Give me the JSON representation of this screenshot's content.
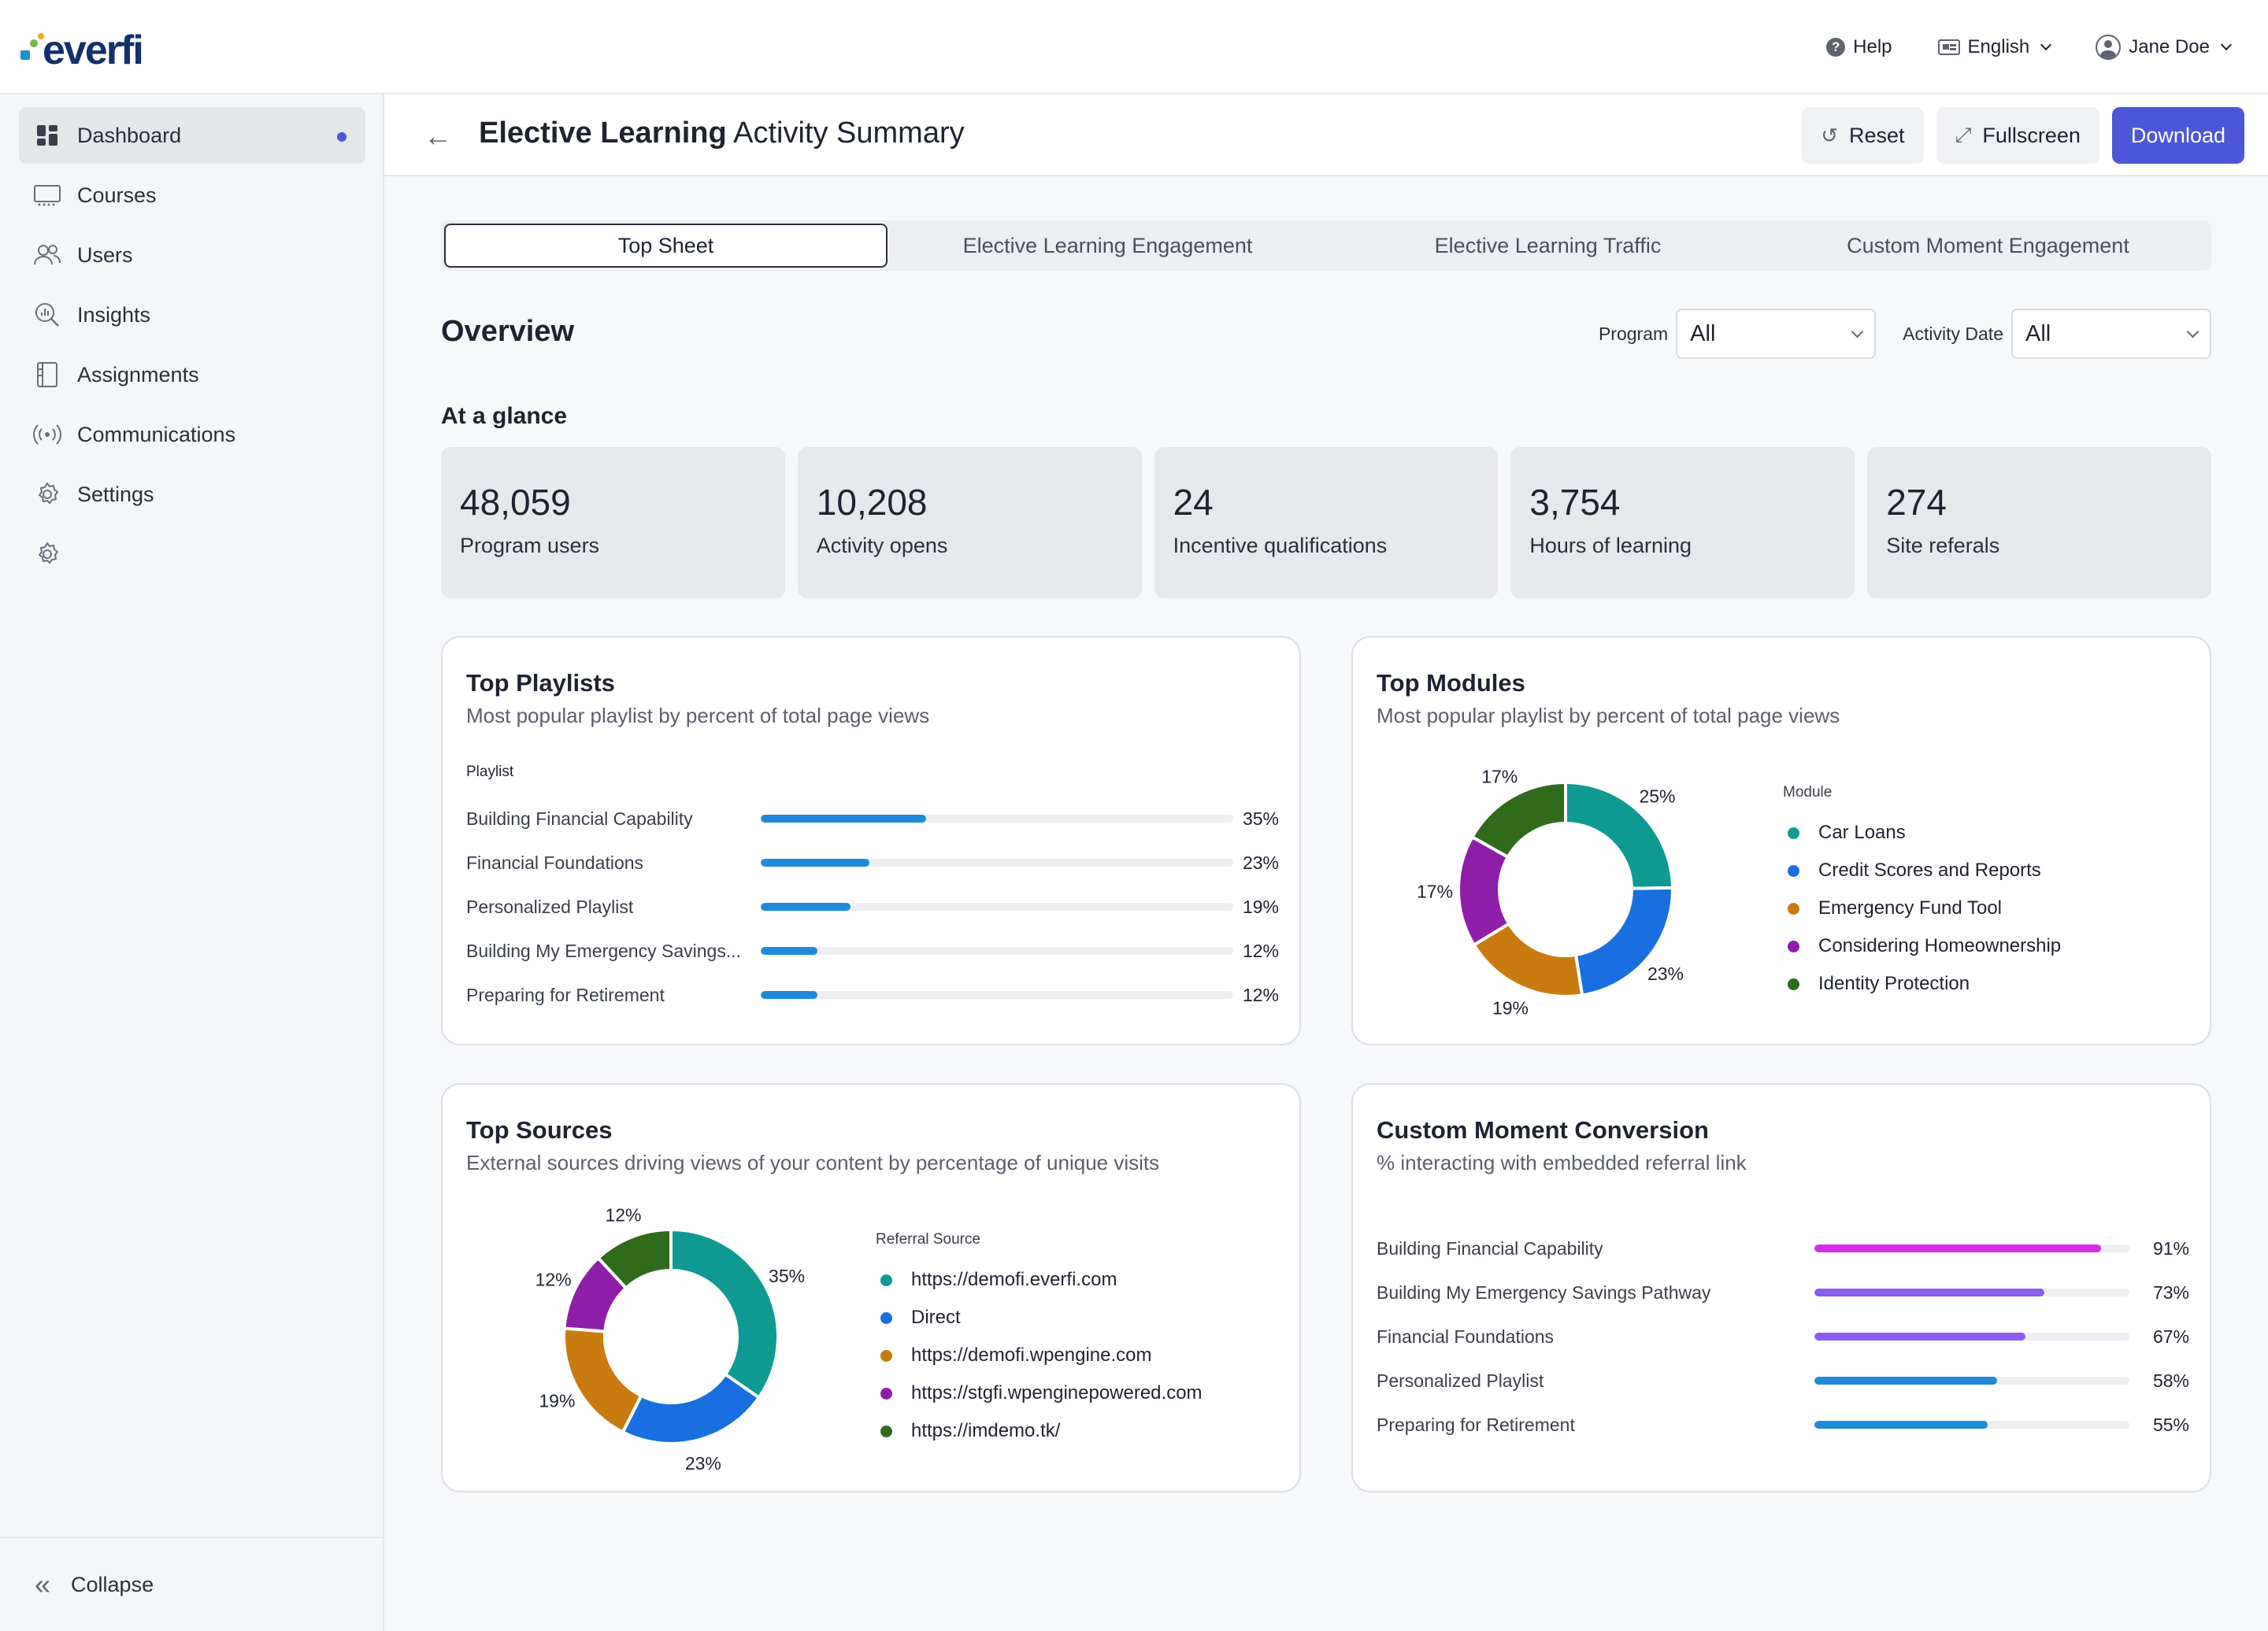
{
  "app": {
    "logo_text": "everfi",
    "help_label": "Help",
    "language_label": "English",
    "user_name": "Jane Doe"
  },
  "sidebar": {
    "items": [
      {
        "label": "Dashboard",
        "icon": "dashboard-icon",
        "active": true
      },
      {
        "label": "Courses",
        "icon": "courses-icon"
      },
      {
        "label": "Users",
        "icon": "users-icon"
      },
      {
        "label": "Insights",
        "icon": "insights-icon"
      },
      {
        "label": "Assignments",
        "icon": "assignments-icon"
      },
      {
        "label": "Communications",
        "icon": "communications-icon"
      },
      {
        "label": "Settings",
        "icon": "gear-icon"
      }
    ],
    "collapse_label": "Collapse",
    "accent": "#4b57d6"
  },
  "header": {
    "title_bold": "Elective Learning",
    "title_rest": " Activity Summary",
    "reset_label": "Reset",
    "fullscreen_label": "Fullscreen",
    "download_label": "Download"
  },
  "tabs": [
    {
      "label": "Top Sheet",
      "active": true
    },
    {
      "label": "Elective Learning Engagement"
    },
    {
      "label": "Elective Learning Traffic"
    },
    {
      "label": "Custom Moment Engagement"
    }
  ],
  "overview": {
    "title": "Overview",
    "program_label": "Program",
    "program_value": "All",
    "date_label": "Activity Date",
    "date_value": "All"
  },
  "glance": {
    "title": "At a glance",
    "stats": [
      {
        "value": "48,059",
        "label": "Program users"
      },
      {
        "value": "10,208",
        "label": "Activity opens"
      },
      {
        "value": "24",
        "label": "Incentive qualifications"
      },
      {
        "value": "3,754",
        "label": "Hours of learning"
      },
      {
        "value": "274",
        "label": "Site referals"
      }
    ]
  },
  "top_playlists": {
    "title": "Top Playlists",
    "subtitle": "Most popular playlist by percent of total page views",
    "column_header": "Playlist",
    "rows": [
      {
        "label": "Building Financial Capability",
        "pct": "35%",
        "value": 35
      },
      {
        "label": "Financial Foundations",
        "pct": "23%",
        "value": 23
      },
      {
        "label": "Personalized Playlist",
        "pct": "19%",
        "value": 19
      },
      {
        "label": "Building My Emergency Savings...",
        "pct": "12%",
        "value": 12
      },
      {
        "label": "Preparing for Retirement",
        "pct": "12%",
        "value": 12
      }
    ],
    "bar_color": "#1f8ad8"
  },
  "top_modules": {
    "title": "Top Modules",
    "subtitle": "Most popular playlist by percent of total page views",
    "legend_header": "Module",
    "slices": [
      {
        "label": "Car Loans",
        "value": 25,
        "pct": "25%",
        "color": "#0e9a93"
      },
      {
        "label": "Credit Scores and Reports",
        "value": 23,
        "pct": "23%",
        "color": "#1a6fe0"
      },
      {
        "label": "Emergency Fund Tool",
        "value": 19,
        "pct": "19%",
        "color": "#c97b10"
      },
      {
        "label": "Considering Homeownership",
        "value": 17,
        "pct": "17%",
        "color": "#8e1ea8"
      },
      {
        "label": "Identity Protection",
        "value": 17,
        "pct": "17%",
        "color": "#2f6b1a"
      }
    ]
  },
  "top_sources": {
    "title": "Top Sources",
    "subtitle": "External sources driving views of your content by percentage of unique visits",
    "legend_header": "Referral Source",
    "slices": [
      {
        "label": "https://demofi.everfi.com",
        "value": 35,
        "pct": "35%",
        "color": "#0e9a93"
      },
      {
        "label": "Direct",
        "value": 23,
        "pct": "23%",
        "color": "#1a6fe0"
      },
      {
        "label": "https://demofi.wpengine.com",
        "value": 19,
        "pct": "19%",
        "color": "#c97b10"
      },
      {
        "label": "https://stgfi.wpenginepowered.com",
        "value": 12,
        "pct": "12%",
        "color": "#8e1ea8"
      },
      {
        "label": "https://imdemo.tk/",
        "value": 12,
        "pct": "12%",
        "color": "#2f6b1a"
      }
    ]
  },
  "custom_moment": {
    "title": "Custom Moment Conversion",
    "subtitle": "% interacting with embedded referral link",
    "rows": [
      {
        "label": "Building Financial Capability",
        "pct": "91%",
        "value": 91,
        "color": "#d62de6"
      },
      {
        "label": "Building My Emergency Savings Pathway",
        "pct": "73%",
        "value": 73,
        "color": "#8b5cf0"
      },
      {
        "label": "Financial Foundations",
        "pct": "67%",
        "value": 67,
        "color": "#8b5cf0"
      },
      {
        "label": "Personalized Playlist",
        "pct": "58%",
        "value": 58,
        "color": "#1f8ad8"
      },
      {
        "label": "Preparing for Retirement",
        "pct": "55%",
        "value": 55,
        "color": "#1f8ad8"
      }
    ]
  }
}
